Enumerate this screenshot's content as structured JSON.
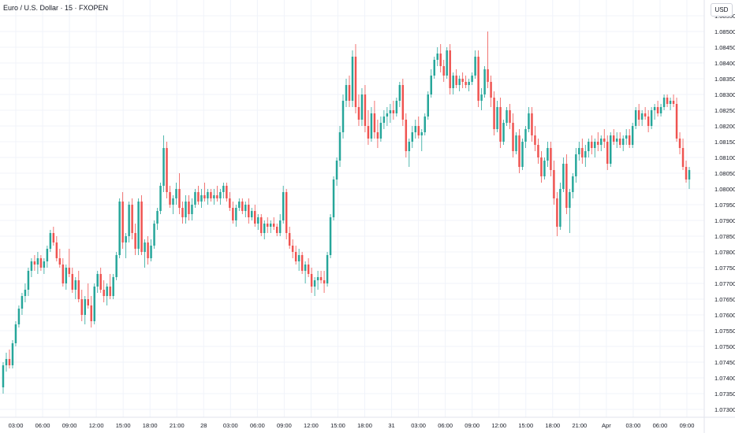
{
  "header": {
    "title": "Euro / U.S. Dollar · 15 · FXOPEN",
    "currency": "USD"
  },
  "colors": {
    "up": "#26a69a",
    "down": "#ef5350",
    "grid": "#f0f3fa",
    "axis_border": "#e0e3eb",
    "text": "#131722"
  },
  "chart_data": {
    "type": "candlestick",
    "title": "Euro / U.S. Dollar · 15 · FXOPEN",
    "ylabel": "USD",
    "ylim": [
      1.0728,
      1.0858
    ],
    "yticks": [
      "1.08550",
      "1.08500",
      "1.08450",
      "1.08400",
      "1.08350",
      "1.08300",
      "1.08250",
      "1.08200",
      "1.08150",
      "1.08100",
      "1.08050",
      "1.08000",
      "1.07950",
      "1.07900",
      "1.07850",
      "1.07800",
      "1.07750",
      "1.07700",
      "1.07650",
      "1.07600",
      "1.07550",
      "1.07500",
      "1.07450",
      "1.07400",
      "1.07350",
      "1.07300"
    ],
    "xticks": [
      "03:00",
      "06:00",
      "09:00",
      "12:00",
      "15:00",
      "18:00",
      "21:00",
      "28",
      "03:00",
      "06:00",
      "09:00",
      "12:00",
      "15:00",
      "18:00",
      "31",
      "03:00",
      "06:00",
      "09:00",
      "12:00",
      "15:00",
      "18:00",
      "21:00",
      "Apr",
      "03:00",
      "06:00",
      "09:00"
    ],
    "candles": [
      [
        1.0737,
        1.0745,
        1.0735,
        1.0744
      ],
      [
        1.0744,
        1.0748,
        1.0742,
        1.0746
      ],
      [
        1.0746,
        1.0749,
        1.0743,
        1.0744
      ],
      [
        1.0744,
        1.0752,
        1.0743,
        1.0751
      ],
      [
        1.0751,
        1.0758,
        1.075,
        1.0757
      ],
      [
        1.0757,
        1.0763,
        1.0756,
        1.0762
      ],
      [
        1.0762,
        1.0767,
        1.076,
        1.0766
      ],
      [
        1.0766,
        1.077,
        1.0764,
        1.0768
      ],
      [
        1.0768,
        1.0775,
        1.0766,
        1.0774
      ],
      [
        1.0774,
        1.0778,
        1.0772,
        1.0777
      ],
      [
        1.0777,
        1.0779,
        1.0774,
        1.0776
      ],
      [
        1.0776,
        1.078,
        1.0773,
        1.0778
      ],
      [
        1.0778,
        1.0779,
        1.0774,
        1.0775
      ],
      [
        1.0775,
        1.0778,
        1.0773,
        1.0777
      ],
      [
        1.0777,
        1.0782,
        1.0775,
        1.0781
      ],
      [
        1.0781,
        1.0787,
        1.078,
        1.0786
      ],
      [
        1.0786,
        1.0788,
        1.0782,
        1.0783
      ],
      [
        1.0783,
        1.0785,
        1.0777,
        1.0778
      ],
      [
        1.0778,
        1.0781,
        1.0775,
        1.0776
      ],
      [
        1.0776,
        1.0778,
        1.0769,
        1.077
      ],
      [
        1.077,
        1.0776,
        1.0768,
        1.0775
      ],
      [
        1.0775,
        1.0781,
        1.0772,
        1.0773
      ],
      [
        1.0773,
        1.0775,
        1.0767,
        1.0768
      ],
      [
        1.0768,
        1.0772,
        1.0765,
        1.0771
      ],
      [
        1.0771,
        1.0774,
        1.0764,
        1.0765
      ],
      [
        1.0765,
        1.0768,
        1.0758,
        1.076
      ],
      [
        1.076,
        1.0766,
        1.0757,
        1.0765
      ],
      [
        1.0765,
        1.077,
        1.0762,
        1.0763
      ],
      [
        1.0763,
        1.0766,
        1.0756,
        1.0758
      ],
      [
        1.0758,
        1.077,
        1.0757,
        1.0769
      ],
      [
        1.0769,
        1.0774,
        1.0767,
        1.0773
      ],
      [
        1.0773,
        1.0775,
        1.0767,
        1.0768
      ],
      [
        1.0768,
        1.0771,
        1.0764,
        1.0766
      ],
      [
        1.0766,
        1.077,
        1.0763,
        1.0769
      ],
      [
        1.0769,
        1.0773,
        1.0765,
        1.0766
      ],
      [
        1.0766,
        1.0773,
        1.0765,
        1.0772
      ],
      [
        1.0772,
        1.078,
        1.0771,
        1.0779
      ],
      [
        1.0779,
        1.0797,
        1.0778,
        1.0796
      ],
      [
        1.0796,
        1.0799,
        1.0781,
        1.0783
      ],
      [
        1.0783,
        1.0786,
        1.0778,
        1.0785
      ],
      [
        1.0785,
        1.0796,
        1.0783,
        1.0795
      ],
      [
        1.0795,
        1.0797,
        1.0784,
        1.0786
      ],
      [
        1.0786,
        1.0789,
        1.0779,
        1.0781
      ],
      [
        1.0781,
        1.0797,
        1.0779,
        1.0796
      ],
      [
        1.0796,
        1.0798,
        1.0779,
        1.078
      ],
      [
        1.078,
        1.0784,
        1.0775,
        1.0783
      ],
      [
        1.0783,
        1.0785,
        1.0776,
        1.0778
      ],
      [
        1.0778,
        1.0784,
        1.0777,
        1.0782
      ],
      [
        1.0782,
        1.079,
        1.0781,
        1.0789
      ],
      [
        1.0789,
        1.0794,
        1.0787,
        1.0793
      ],
      [
        1.0793,
        1.0802,
        1.0792,
        1.0801
      ],
      [
        1.0801,
        1.0817,
        1.0799,
        1.0813
      ],
      [
        1.0813,
        1.0815,
        1.0797,
        1.0799
      ],
      [
        1.0799,
        1.0801,
        1.0794,
        1.0795
      ],
      [
        1.0795,
        1.0798,
        1.0792,
        1.0797
      ],
      [
        1.0797,
        1.0802,
        1.0795,
        1.08
      ],
      [
        1.08,
        1.0805,
        1.0792,
        1.0794
      ],
      [
        1.0794,
        1.0796,
        1.0789,
        1.0791
      ],
      [
        1.0791,
        1.0798,
        1.0789,
        1.0796
      ],
      [
        1.0796,
        1.0798,
        1.079,
        1.0792
      ],
      [
        1.0792,
        1.0797,
        1.079,
        1.0795
      ],
      [
        1.0795,
        1.08,
        1.0794,
        1.0799
      ],
      [
        1.0799,
        1.0801,
        1.0795,
        1.0796
      ],
      [
        1.0796,
        1.08,
        1.0794,
        1.0798
      ],
      [
        1.0798,
        1.0802,
        1.0796,
        1.0797
      ],
      [
        1.0797,
        1.08,
        1.0795,
        1.0799
      ],
      [
        1.0799,
        1.08,
        1.0796,
        1.0797
      ],
      [
        1.0797,
        1.08,
        1.0795,
        1.0798
      ],
      [
        1.0798,
        1.0801,
        1.0796,
        1.0797
      ],
      [
        1.0797,
        1.08,
        1.0795,
        1.0799
      ],
      [
        1.0799,
        1.0802,
        1.0797,
        1.0801
      ],
      [
        1.0801,
        1.0802,
        1.0796,
        1.0797
      ],
      [
        1.0797,
        1.0799,
        1.0793,
        1.0794
      ],
      [
        1.0794,
        1.0796,
        1.0789,
        1.079
      ],
      [
        1.079,
        1.0795,
        1.0788,
        1.0794
      ],
      [
        1.0794,
        1.0797,
        1.0793,
        1.0796
      ],
      [
        1.0796,
        1.0797,
        1.0792,
        1.0793
      ],
      [
        1.0793,
        1.0796,
        1.0791,
        1.0795
      ],
      [
        1.0795,
        1.0797,
        1.0789,
        1.0791
      ],
      [
        1.0791,
        1.0794,
        1.079,
        1.0793
      ],
      [
        1.0793,
        1.0795,
        1.0788,
        1.0789
      ],
      [
        1.0789,
        1.0792,
        1.0787,
        1.0791
      ],
      [
        1.0791,
        1.0792,
        1.0785,
        1.0786
      ],
      [
        1.0786,
        1.079,
        1.0784,
        1.0789
      ],
      [
        1.0789,
        1.0791,
        1.0786,
        1.0788
      ],
      [
        1.0788,
        1.079,
        1.0786,
        1.0789
      ],
      [
        1.0789,
        1.0791,
        1.0787,
        1.0788
      ],
      [
        1.0788,
        1.0789,
        1.0785,
        1.0786
      ],
      [
        1.0786,
        1.0792,
        1.0785,
        1.079
      ],
      [
        1.079,
        1.0801,
        1.0789,
        1.0799
      ],
      [
        1.0799,
        1.08,
        1.0784,
        1.0786
      ],
      [
        1.0786,
        1.0788,
        1.0781,
        1.0782
      ],
      [
        1.0782,
        1.0784,
        1.0778,
        1.078
      ],
      [
        1.078,
        1.0782,
        1.0776,
        1.0777
      ],
      [
        1.0777,
        1.0781,
        1.0774,
        1.0779
      ],
      [
        1.0779,
        1.078,
        1.0773,
        1.0774
      ],
      [
        1.0774,
        1.0777,
        1.077,
        1.0776
      ],
      [
        1.0776,
        1.0778,
        1.0772,
        1.0773
      ],
      [
        1.0773,
        1.0775,
        1.0767,
        1.0769
      ],
      [
        1.0769,
        1.0772,
        1.0766,
        1.0771
      ],
      [
        1.0771,
        1.0774,
        1.0768,
        1.0772
      ],
      [
        1.0772,
        1.0774,
        1.077,
        1.0771
      ],
      [
        1.0771,
        1.0774,
        1.0767,
        1.077
      ],
      [
        1.077,
        1.078,
        1.0769,
        1.0779
      ],
      [
        1.0779,
        1.0792,
        1.0778,
        1.0791
      ],
      [
        1.0791,
        1.0804,
        1.079,
        1.0803
      ],
      [
        1.0803,
        1.081,
        1.0801,
        1.0809
      ],
      [
        1.0809,
        1.082,
        1.0807,
        1.0818
      ],
      [
        1.0818,
        1.083,
        1.0816,
        1.0828
      ],
      [
        1.0828,
        1.0835,
        1.0826,
        1.0833
      ],
      [
        1.0833,
        1.0836,
        1.0826,
        1.0828
      ],
      [
        1.0828,
        1.0844,
        1.0826,
        1.0842
      ],
      [
        1.0842,
        1.0846,
        1.0824,
        1.0826
      ],
      [
        1.0826,
        1.083,
        1.082,
        1.0822
      ],
      [
        1.0822,
        1.0832,
        1.082,
        1.083
      ],
      [
        1.083,
        1.0833,
        1.0818,
        1.082
      ],
      [
        1.082,
        1.0825,
        1.0814,
        1.0816
      ],
      [
        1.0816,
        1.0826,
        1.0815,
        1.0824
      ],
      [
        1.0824,
        1.0828,
        1.0816,
        1.0818
      ],
      [
        1.0818,
        1.0822,
        1.0813,
        1.0816
      ],
      [
        1.0816,
        1.0823,
        1.0815,
        1.0821
      ],
      [
        1.0821,
        1.0825,
        1.0819,
        1.0823
      ],
      [
        1.0823,
        1.0826,
        1.082,
        1.0824
      ],
      [
        1.0824,
        1.0827,
        1.0821,
        1.0825
      ],
      [
        1.0825,
        1.0828,
        1.0822,
        1.0824
      ],
      [
        1.0824,
        1.0829,
        1.0823,
        1.0828
      ],
      [
        1.0828,
        1.0834,
        1.0826,
        1.0833
      ],
      [
        1.0833,
        1.0835,
        1.082,
        1.0822
      ],
      [
        1.0822,
        1.0824,
        1.081,
        1.0812
      ],
      [
        1.0812,
        1.0816,
        1.0807,
        1.0815
      ],
      [
        1.0815,
        1.082,
        1.0813,
        1.0818
      ],
      [
        1.0818,
        1.0822,
        1.0816,
        1.082
      ],
      [
        1.082,
        1.0823,
        1.0816,
        1.0817
      ],
      [
        1.0817,
        1.0819,
        1.0812,
        1.0818
      ],
      [
        1.0818,
        1.0824,
        1.0817,
        1.0823
      ],
      [
        1.0823,
        1.0831,
        1.0822,
        1.083
      ],
      [
        1.083,
        1.0838,
        1.0829,
        1.0836
      ],
      [
        1.0836,
        1.0842,
        1.0835,
        1.0841
      ],
      [
        1.0841,
        1.0845,
        1.0839,
        1.0843
      ],
      [
        1.0843,
        1.0846,
        1.0837,
        1.0839
      ],
      [
        1.0839,
        1.0841,
        1.0834,
        1.0836
      ],
      [
        1.0836,
        1.0845,
        1.0835,
        1.0844
      ],
      [
        1.0844,
        1.0846,
        1.083,
        1.0832
      ],
      [
        1.0832,
        1.0837,
        1.083,
        1.0836
      ],
      [
        1.0836,
        1.0838,
        1.0832,
        1.0833
      ],
      [
        1.0833,
        1.0836,
        1.0831,
        1.0835
      ],
      [
        1.0835,
        1.0837,
        1.0832,
        1.0834
      ],
      [
        1.0834,
        1.0836,
        1.0832,
        1.0833
      ],
      [
        1.0833,
        1.0835,
        1.0831,
        1.0834
      ],
      [
        1.0834,
        1.0837,
        1.0833,
        1.0836
      ],
      [
        1.0836,
        1.0844,
        1.0835,
        1.0842
      ],
      [
        1.0842,
        1.0844,
        1.0826,
        1.0828
      ],
      [
        1.0828,
        1.0832,
        1.0825,
        1.083
      ],
      [
        1.083,
        1.0839,
        1.0829,
        1.0838
      ],
      [
        1.0838,
        1.085,
        1.0832,
        1.0834
      ],
      [
        1.0834,
        1.0836,
        1.0826,
        1.0829
      ],
      [
        1.0829,
        1.0831,
        1.0817,
        1.0819
      ],
      [
        1.0819,
        1.0828,
        1.0818,
        1.0826
      ],
      [
        1.0826,
        1.0829,
        1.0813,
        1.0815
      ],
      [
        1.0815,
        1.0822,
        1.0814,
        1.0821
      ],
      [
        1.0821,
        1.0826,
        1.082,
        1.0825
      ],
      [
        1.0825,
        1.0827,
        1.0819,
        1.0821
      ],
      [
        1.0821,
        1.0824,
        1.081,
        1.0812
      ],
      [
        1.0812,
        1.0818,
        1.0811,
        1.0817
      ],
      [
        1.0817,
        1.0819,
        1.0805,
        1.0807
      ],
      [
        1.0807,
        1.0816,
        1.0806,
        1.0815
      ],
      [
        1.0815,
        1.082,
        1.0813,
        1.0819
      ],
      [
        1.0819,
        1.0826,
        1.0818,
        1.0824
      ],
      [
        1.0824,
        1.0826,
        1.0815,
        1.0817
      ],
      [
        1.0817,
        1.082,
        1.0812,
        1.0814
      ],
      [
        1.0814,
        1.0816,
        1.0808,
        1.081
      ],
      [
        1.081,
        1.0812,
        1.0802,
        1.0804
      ],
      [
        1.0804,
        1.081,
        1.0803,
        1.0809
      ],
      [
        1.0809,
        1.0815,
        1.0807,
        1.0813
      ],
      [
        1.0813,
        1.0815,
        1.0804,
        1.0806
      ],
      [
        1.0806,
        1.0809,
        1.0795,
        1.0797
      ],
      [
        1.0797,
        1.0799,
        1.0785,
        1.0788
      ],
      [
        1.0788,
        1.0802,
        1.0787,
        1.08
      ],
      [
        1.08,
        1.081,
        1.0799,
        1.0808
      ],
      [
        1.0808,
        1.0811,
        1.0792,
        1.0794
      ],
      [
        1.0794,
        1.08,
        1.0786,
        1.0799
      ],
      [
        1.0799,
        1.0805,
        1.0797,
        1.0804
      ],
      [
        1.0804,
        1.0813,
        1.0802,
        1.0811
      ],
      [
        1.0811,
        1.0815,
        1.0809,
        1.0813
      ],
      [
        1.0813,
        1.0816,
        1.0808,
        1.081
      ],
      [
        1.081,
        1.0814,
        1.0807,
        1.0812
      ],
      [
        1.0812,
        1.0816,
        1.081,
        1.0815
      ],
      [
        1.0815,
        1.0817,
        1.0811,
        1.0813
      ],
      [
        1.0813,
        1.0816,
        1.081,
        1.0815
      ],
      [
        1.0815,
        1.0818,
        1.0812,
        1.0814
      ],
      [
        1.0814,
        1.0817,
        1.0812,
        1.0816
      ],
      [
        1.0816,
        1.0819,
        1.0813,
        1.0815
      ],
      [
        1.0815,
        1.0817,
        1.0806,
        1.0808
      ],
      [
        1.0808,
        1.0818,
        1.0807,
        1.0817
      ],
      [
        1.0817,
        1.0819,
        1.0814,
        1.0815
      ],
      [
        1.0815,
        1.0818,
        1.0813,
        1.0816
      ],
      [
        1.0816,
        1.0818,
        1.0813,
        1.0814
      ],
      [
        1.0814,
        1.0817,
        1.0812,
        1.0816
      ],
      [
        1.0816,
        1.0819,
        1.0814,
        1.0817
      ],
      [
        1.0817,
        1.0819,
        1.0813,
        1.0814
      ],
      [
        1.0814,
        1.0821,
        1.0813,
        1.082
      ],
      [
        1.082,
        1.0826,
        1.0819,
        1.0825
      ],
      [
        1.0825,
        1.0827,
        1.082,
        1.0822
      ],
      [
        1.0822,
        1.0825,
        1.082,
        1.0824
      ],
      [
        1.0824,
        1.0826,
        1.0822,
        1.0823
      ],
      [
        1.0823,
        1.0825,
        1.0818,
        1.082
      ],
      [
        1.082,
        1.0826,
        1.0819,
        1.0825
      ],
      [
        1.0825,
        1.0827,
        1.0822,
        1.0826
      ],
      [
        1.0826,
        1.0828,
        1.0823,
        1.0824
      ],
      [
        1.0824,
        1.0827,
        1.0823,
        1.0826
      ],
      [
        1.0826,
        1.083,
        1.0825,
        1.0829
      ],
      [
        1.0829,
        1.083,
        1.0826,
        1.0827
      ],
      [
        1.0827,
        1.0829,
        1.0825,
        1.0828
      ],
      [
        1.0828,
        1.083,
        1.0826,
        1.0827
      ],
      [
        1.0827,
        1.0829,
        1.0815,
        1.0816
      ],
      [
        1.0816,
        1.0818,
        1.0811,
        1.0813
      ],
      [
        1.0813,
        1.0816,
        1.0806,
        1.0807
      ],
      [
        1.0807,
        1.0809,
        1.0802,
        1.0803
      ],
      [
        1.0803,
        1.0807,
        1.08,
        1.0806
      ]
    ]
  }
}
